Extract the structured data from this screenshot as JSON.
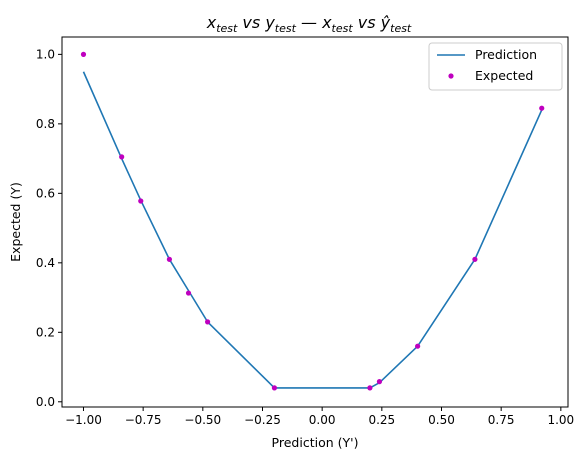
{
  "chart_data": {
    "type": "line",
    "title": {
      "x_left": "x",
      "x_left_sub": "test",
      "vs_left": " vs ",
      "y_left": "y",
      "y_left_sub": "test",
      "sep": "  —  ",
      "x_right": "x",
      "x_right_sub": "test",
      "vs_right": " vs ",
      "y_right": "ŷ",
      "y_right_sub": "test"
    },
    "xlabel": "Prediction (Y')",
    "ylabel": "Expected (Y)",
    "xlim": [
      -1.09,
      1.03
    ],
    "ylim": [
      -0.015,
      1.05
    ],
    "xticks": [
      -1.0,
      -0.75,
      -0.5,
      -0.25,
      0.0,
      0.25,
      0.5,
      0.75,
      1.0
    ],
    "xtick_labels": [
      "−1.00",
      "−0.75",
      "−0.50",
      "−0.25",
      "0.00",
      "0.25",
      "0.50",
      "0.75",
      "1.00"
    ],
    "yticks": [
      0.0,
      0.2,
      0.4,
      0.6,
      0.8,
      1.0
    ],
    "ytick_labels": [
      "0.0",
      "0.2",
      "0.4",
      "0.6",
      "0.8",
      "1.0"
    ],
    "grid": false,
    "legend": "top-right",
    "series": [
      {
        "name": "Prediction",
        "kind": "line",
        "color": "#1f77b4",
        "points": [
          [
            -1.0,
            0.95
          ],
          [
            -0.84,
            0.7
          ],
          [
            -0.76,
            0.58
          ],
          [
            -0.64,
            0.41
          ],
          [
            -0.56,
            0.32
          ],
          [
            -0.48,
            0.23
          ],
          [
            -0.2,
            0.04
          ],
          [
            0.2,
            0.04
          ],
          [
            0.24,
            0.055
          ],
          [
            0.4,
            0.16
          ],
          [
            0.64,
            0.41
          ],
          [
            0.92,
            0.84
          ]
        ]
      },
      {
        "name": "Expected",
        "kind": "scatter",
        "color": "#bf00bf",
        "points": [
          [
            -1.0,
            1.0
          ],
          [
            -0.84,
            0.705
          ],
          [
            -0.76,
            0.578
          ],
          [
            -0.64,
            0.41
          ],
          [
            -0.56,
            0.313
          ],
          [
            -0.48,
            0.23
          ],
          [
            -0.2,
            0.04
          ],
          [
            0.2,
            0.04
          ],
          [
            0.24,
            0.058
          ],
          [
            0.4,
            0.16
          ],
          [
            0.64,
            0.41
          ],
          [
            0.92,
            0.845
          ]
        ]
      }
    ]
  }
}
